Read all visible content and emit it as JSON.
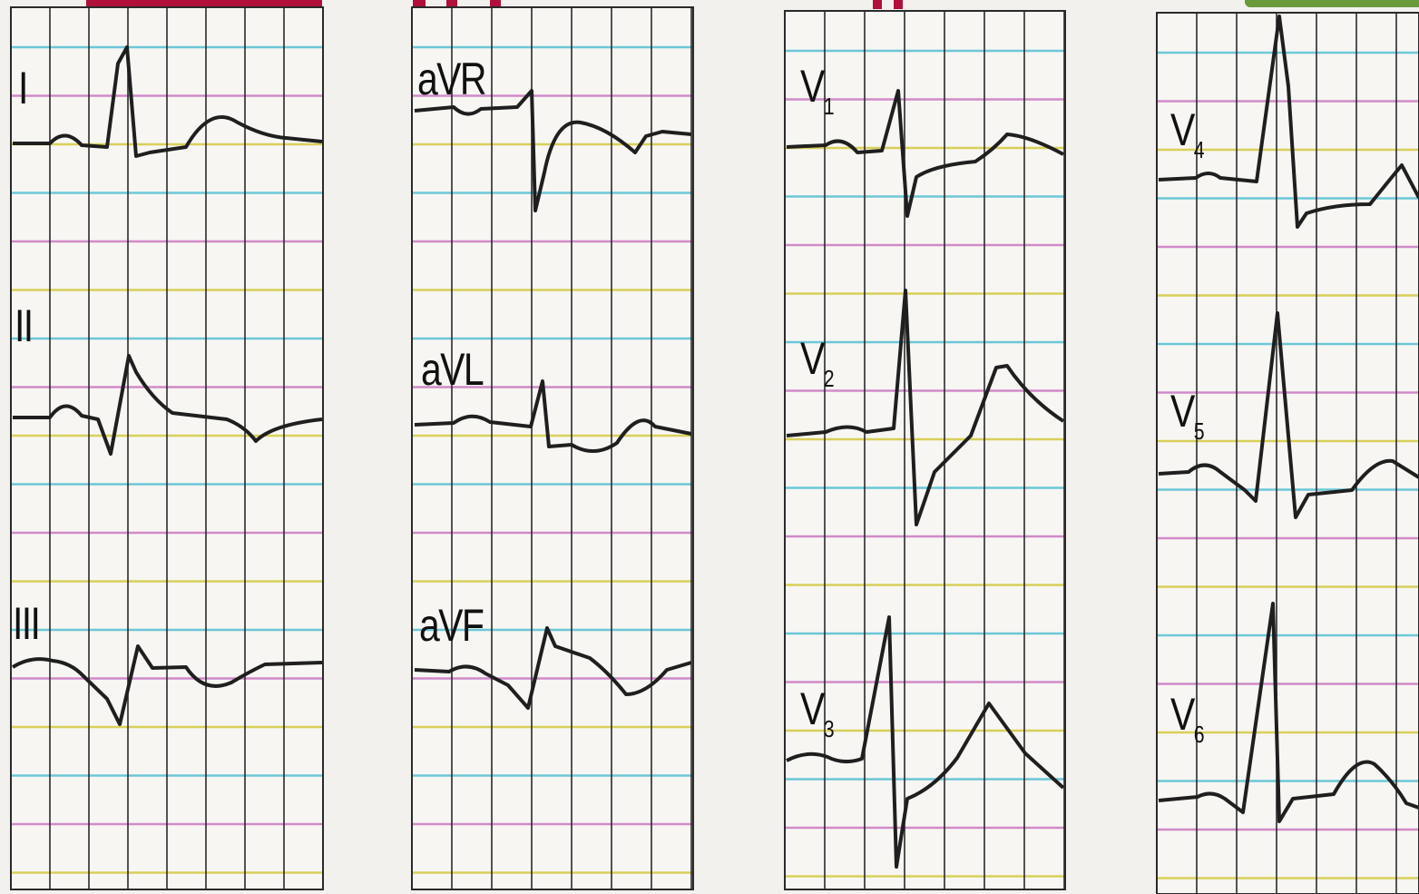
{
  "colors": {
    "paper": "#f3f1ee",
    "grid_vertical": "#2a2a2a",
    "grid_row_a": "#d18ac9",
    "grid_row_b": "#6cc7d8",
    "grid_row_c": "#d9cf5a",
    "trace": "#1f1f1f",
    "title_fragment": "#b0103a",
    "corner_tab": "#6a9a3a"
  },
  "leads": {
    "I": {
      "name": "I",
      "sub": ""
    },
    "II": {
      "name": "II",
      "sub": ""
    },
    "III": {
      "name": "III",
      "sub": ""
    },
    "aVR": {
      "name": "aVR",
      "sub": ""
    },
    "aVL": {
      "name": "aVL",
      "sub": ""
    },
    "aVF": {
      "name": "aVF",
      "sub": ""
    },
    "V1": {
      "name": "V",
      "sub": "1"
    },
    "V2": {
      "name": "V",
      "sub": "2"
    },
    "V3": {
      "name": "V",
      "sub": "3"
    },
    "V4": {
      "name": "V",
      "sub": "4"
    },
    "V5": {
      "name": "V",
      "sub": "5"
    },
    "V6": {
      "name": "V",
      "sub": "6"
    }
  }
}
